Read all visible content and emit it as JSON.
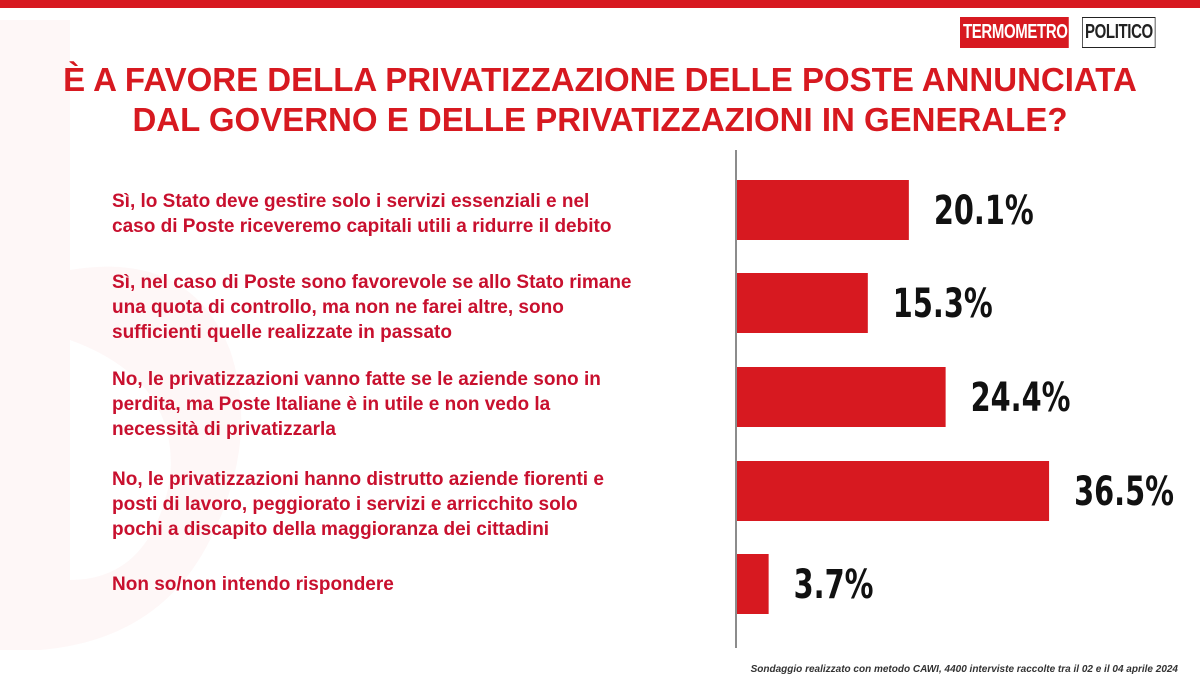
{
  "brand": {
    "logo_part1": "TERMOMETRO",
    "logo_part2": "POLITICO",
    "accent_color": "#d71920"
  },
  "chart_data": {
    "type": "bar",
    "orientation": "horizontal",
    "title": "È A FAVORE DELLA PRIVATIZZAZIONE DELLE POSTE ANNUNCIATA DAL GOVERNO E DELLE PRIVATIZZAZIONI IN GENERALE?",
    "title_lines": [
      "È A FAVORE DELLA PRIVATIZZAZIONE DELLE POSTE ANNUNCIATA",
      "DAL GOVERNO E DELLE PRIVATIZZAZIONI IN GENERALE?"
    ],
    "categories": [
      "Sì, lo Stato deve gestire solo i servizi essenziali e nel\ncaso di Poste riceveremo capitali utili a ridurre il debito",
      "Sì, nel caso di Poste sono favorevole se allo Stato rimane\nuna quota di controllo, ma non ne farei altre, sono\nsufficienti quelle realizzate in passato",
      "No, le privatizzazioni vanno fatte se le aziende sono in\nperdita, ma Poste Italiane è in utile e non vedo la\nnecessità  di privatizzarla",
      "No, le privatizzazioni hanno distrutto aziende fiorenti e\nposti di lavoro, peggiorato i servizi e arricchito solo\npochi a discapito della maggioranza dei cittadini",
      "Non so/non intendo rispondere"
    ],
    "values": [
      20.1,
      15.3,
      24.4,
      36.5,
      3.7
    ],
    "value_labels": [
      "20.1%",
      "15.3%",
      "24.4%",
      "36.5%",
      "3.7%"
    ],
    "unit": "%",
    "bar_color": "#d71920",
    "grid": false,
    "legend": "none"
  },
  "footnote": "Sondaggio realizzato con metodo CAWI, 4400 interviste raccolte tra il 02 e il 04 aprile 2024"
}
